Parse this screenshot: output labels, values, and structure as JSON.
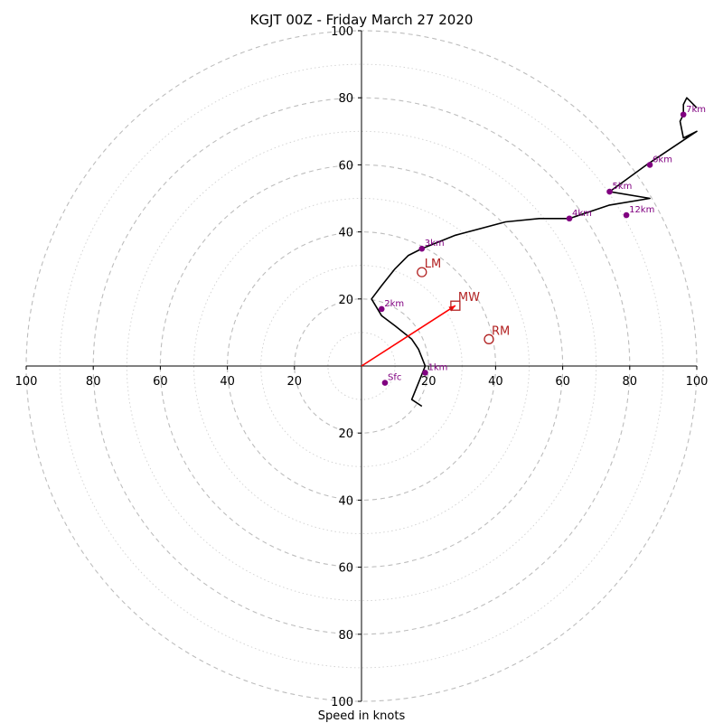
{
  "chart_data": {
    "type": "scatter",
    "subtype": "hodograph",
    "title": "KGJT 00Z - Friday March 27 2020",
    "xlabel": "Speed in knots",
    "ylabel": "",
    "xlim": [
      -100,
      100
    ],
    "ylim": [
      -100,
      100
    ],
    "ring_major_step": 20,
    "ring_minor_step": 10,
    "grid": true,
    "axis_ticks": {
      "x_left": [
        "100",
        "80",
        "60",
        "40",
        "20"
      ],
      "x_right": [
        "20",
        "40",
        "60",
        "80",
        "100"
      ],
      "y_top": [
        "20",
        "40",
        "60",
        "80",
        "100"
      ],
      "y_bottom": [
        "20",
        "40",
        "60",
        "80",
        "100"
      ]
    },
    "tick_values": [
      20,
      40,
      60,
      80,
      100
    ],
    "trace": {
      "color": "#000000",
      "points": [
        [
          18,
          -12
        ],
        [
          15,
          -10
        ],
        [
          17,
          -5
        ],
        [
          19,
          0
        ],
        [
          17,
          5
        ],
        [
          15,
          8
        ],
        [
          10,
          12
        ],
        [
          6,
          15
        ],
        [
          3,
          20
        ],
        [
          6,
          24
        ],
        [
          10,
          29
        ],
        [
          14,
          33
        ],
        [
          18,
          35
        ],
        [
          28,
          39
        ],
        [
          43,
          43
        ],
        [
          53,
          44
        ],
        [
          62,
          44
        ],
        [
          74,
          48
        ],
        [
          86,
          50
        ],
        [
          74,
          52
        ],
        [
          85,
          60
        ],
        [
          100,
          70
        ],
        [
          96,
          68
        ],
        [
          95,
          73
        ],
        [
          96,
          75
        ],
        [
          96,
          78
        ],
        [
          97,
          80
        ],
        [
          100,
          77
        ]
      ]
    },
    "height_markers": {
      "color": "#800080",
      "labels": [
        "Sfc",
        "1km",
        "2km",
        "3km",
        "4km",
        "5km",
        "6km",
        "7km",
        "12km"
      ],
      "points": [
        [
          7,
          -5
        ],
        [
          19,
          -2
        ],
        [
          6,
          17
        ],
        [
          18,
          35
        ],
        [
          62,
          44
        ],
        [
          74,
          52
        ],
        [
          86,
          60
        ],
        [
          96,
          75
        ],
        [
          79,
          45
        ]
      ]
    },
    "motion_points": {
      "color": "#b22222",
      "labels": [
        "MW",
        "LM",
        "RM"
      ],
      "markers": [
        "square",
        "circle",
        "circle"
      ],
      "points": [
        [
          28,
          18
        ],
        [
          18,
          28
        ],
        [
          38,
          8
        ]
      ]
    },
    "shear_vector": {
      "color": "#ff0000",
      "from": [
        0,
        0
      ],
      "to": [
        28,
        18
      ]
    }
  }
}
